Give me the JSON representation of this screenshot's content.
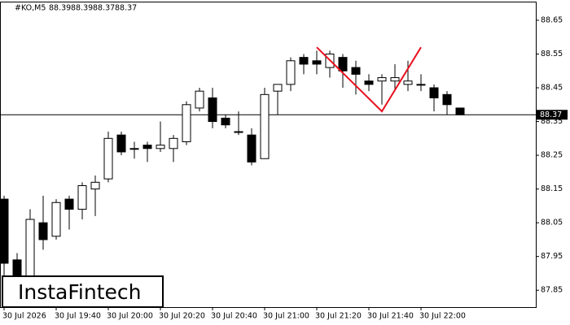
{
  "chart_data": {
    "type": "candlestick",
    "title": "#KO,M5",
    "watermark": "InstaFintech",
    "categories": [
      "30 Jul 2026",
      null,
      null,
      null,
      "30 Jul 19:40",
      null,
      null,
      null,
      "30 Jul 20:00",
      null,
      null,
      null,
      "30 Jul 20:20",
      null,
      null,
      null,
      "30 Jul 20:40",
      null,
      null,
      null,
      "30 Jul 21:00",
      null,
      null,
      null,
      "30 Jul 21:20",
      null,
      null,
      null,
      "30 Jul 21:40",
      null,
      null,
      null,
      "30 Jul 22:00",
      null,
      null,
      null
    ],
    "open": [
      88.12,
      87.94,
      87.88,
      88.05,
      88.01,
      88.12,
      88.09,
      88.15,
      88.18,
      88.31,
      88.27,
      88.28,
      88.27,
      88.27,
      88.29,
      88.39,
      88.42,
      88.36,
      88.32,
      88.31,
      88.24,
      88.44,
      88.46,
      88.54,
      88.53,
      88.51,
      88.54,
      88.51,
      88.47,
      88.47,
      88.47,
      88.46,
      88.46,
      88.45,
      88.43,
      88.39
    ],
    "high": [
      88.13,
      87.96,
      88.09,
      88.13,
      88.12,
      88.13,
      88.17,
      88.19,
      88.32,
      88.32,
      88.29,
      88.29,
      88.35,
      88.31,
      88.41,
      88.45,
      88.45,
      88.37,
      88.38,
      88.33,
      88.45,
      88.46,
      88.54,
      88.55,
      88.56,
      88.56,
      88.55,
      88.53,
      88.49,
      88.49,
      88.52,
      88.53,
      88.49,
      88.46,
      88.44,
      88.39
    ],
    "low": [
      87.85,
      87.8,
      87.86,
      87.97,
      88.0,
      88.03,
      88.06,
      88.07,
      88.17,
      88.25,
      88.24,
      88.23,
      88.26,
      88.23,
      88.28,
      88.38,
      88.33,
      88.33,
      88.31,
      88.22,
      88.24,
      88.37,
      88.44,
      88.49,
      88.49,
      88.48,
      88.45,
      88.43,
      88.44,
      88.4,
      88.44,
      88.44,
      88.44,
      88.38,
      88.37,
      88.37
    ],
    "close": [
      87.93,
      87.88,
      88.06,
      88.0,
      88.11,
      88.09,
      88.16,
      88.17,
      88.3,
      88.26,
      88.27,
      88.27,
      88.28,
      88.3,
      88.4,
      88.44,
      88.35,
      88.34,
      88.32,
      88.23,
      88.43,
      88.46,
      88.53,
      88.52,
      88.52,
      88.55,
      88.5,
      88.49,
      88.46,
      88.48,
      88.48,
      88.47,
      88.46,
      88.42,
      88.4,
      88.37
    ],
    "up_color": "#ffffff",
    "down_color": "#000000",
    "last_price": 88.37,
    "pattern": {
      "color": "#e8101e",
      "x": [
        24,
        29,
        32
      ],
      "y": [
        88.57,
        88.38,
        88.57
      ]
    },
    "ylim": [
      87.8,
      88.686
    ],
    "yticks": [
      87.85,
      87.95,
      88.05,
      88.15,
      88.25,
      88.35,
      88.45,
      88.55,
      88.65
    ]
  }
}
